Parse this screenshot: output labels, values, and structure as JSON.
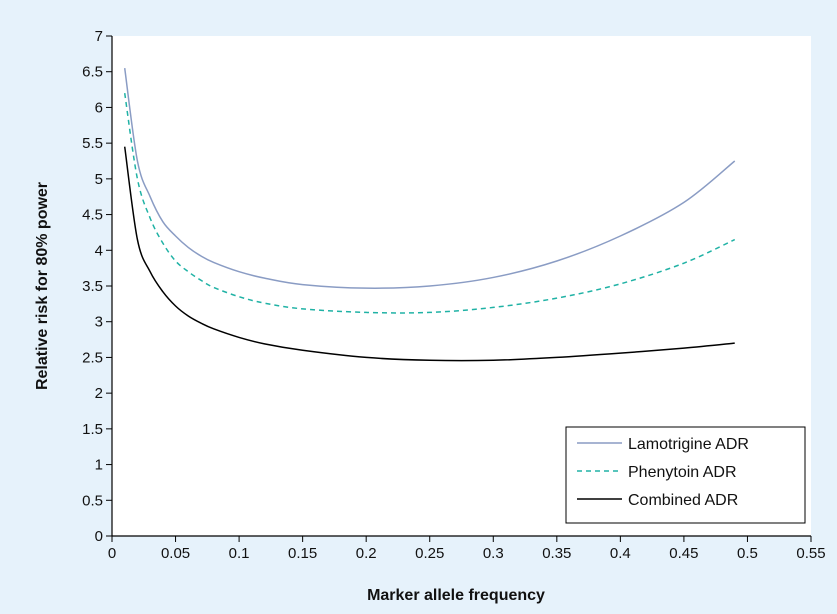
{
  "chart_data": {
    "type": "line",
    "title": "",
    "xlabel": "Marker allele frequency",
    "ylabel": "Relative risk for 80% power",
    "xlim": [
      0,
      0.55
    ],
    "ylim": [
      0,
      7
    ],
    "xticks": [
      {
        "value": 0,
        "label": "0"
      },
      {
        "value": 0.05,
        "label": "0.05"
      },
      {
        "value": 0.1,
        "label": "0.1"
      },
      {
        "value": 0.15,
        "label": "0.15"
      },
      {
        "value": 0.2,
        "label": "0.2"
      },
      {
        "value": 0.25,
        "label": "0.25"
      },
      {
        "value": 0.3,
        "label": "0.3"
      },
      {
        "value": 0.35,
        "label": "0.35"
      },
      {
        "value": 0.4,
        "label": "0.4"
      },
      {
        "value": 0.45,
        "label": "0.45"
      },
      {
        "value": 0.5,
        "label": "0.5"
      },
      {
        "value": 0.55,
        "label": "0.55"
      }
    ],
    "yticks": [
      {
        "value": 0,
        "label": "0"
      },
      {
        "value": 0.5,
        "label": "0.5"
      },
      {
        "value": 1,
        "label": "1"
      },
      {
        "value": 1.5,
        "label": "1.5"
      },
      {
        "value": 2,
        "label": "2"
      },
      {
        "value": 2.5,
        "label": "2.5"
      },
      {
        "value": 3,
        "label": "3"
      },
      {
        "value": 3.5,
        "label": "3.5"
      },
      {
        "value": 4,
        "label": "4"
      },
      {
        "value": 4.5,
        "label": "4.5"
      },
      {
        "value": 5,
        "label": "5"
      },
      {
        "value": 5.5,
        "label": "5.5"
      },
      {
        "value": 6,
        "label": "6"
      },
      {
        "value": 6.5,
        "label": "6.5"
      },
      {
        "value": 7,
        "label": "7"
      }
    ],
    "grid": false,
    "legend_position": "bottom-right",
    "series": [
      {
        "name": "Lamotrigine ADR",
        "color": "#8a9cc4",
        "dash": "solid",
        "x": [
          0.01,
          0.02,
          0.03,
          0.04,
          0.05,
          0.06,
          0.07,
          0.08,
          0.1,
          0.12,
          0.15,
          0.2,
          0.25,
          0.3,
          0.35,
          0.4,
          0.45,
          0.49
        ],
        "y": [
          6.55,
          5.25,
          4.75,
          4.4,
          4.2,
          4.04,
          3.92,
          3.83,
          3.7,
          3.61,
          3.52,
          3.47,
          3.5,
          3.62,
          3.85,
          4.2,
          4.67,
          5.25
        ]
      },
      {
        "name": "Phenytoin ADR",
        "color": "#20b2a5",
        "dash": "dashed",
        "x": [
          0.01,
          0.02,
          0.03,
          0.04,
          0.05,
          0.06,
          0.07,
          0.08,
          0.1,
          0.12,
          0.15,
          0.2,
          0.25,
          0.3,
          0.35,
          0.4,
          0.45,
          0.49
        ],
        "y": [
          6.2,
          5.0,
          4.45,
          4.1,
          3.85,
          3.7,
          3.58,
          3.48,
          3.35,
          3.26,
          3.18,
          3.13,
          3.13,
          3.2,
          3.33,
          3.53,
          3.82,
          4.15
        ]
      },
      {
        "name": "Combined ADR",
        "color": "#000000",
        "dash": "solid",
        "x": [
          0.01,
          0.02,
          0.03,
          0.04,
          0.05,
          0.06,
          0.07,
          0.08,
          0.1,
          0.12,
          0.15,
          0.2,
          0.25,
          0.3,
          0.35,
          0.4,
          0.45,
          0.49
        ],
        "y": [
          5.45,
          4.15,
          3.7,
          3.42,
          3.22,
          3.08,
          2.98,
          2.9,
          2.78,
          2.69,
          2.6,
          2.5,
          2.46,
          2.46,
          2.5,
          2.56,
          2.63,
          2.7
        ]
      }
    ]
  }
}
